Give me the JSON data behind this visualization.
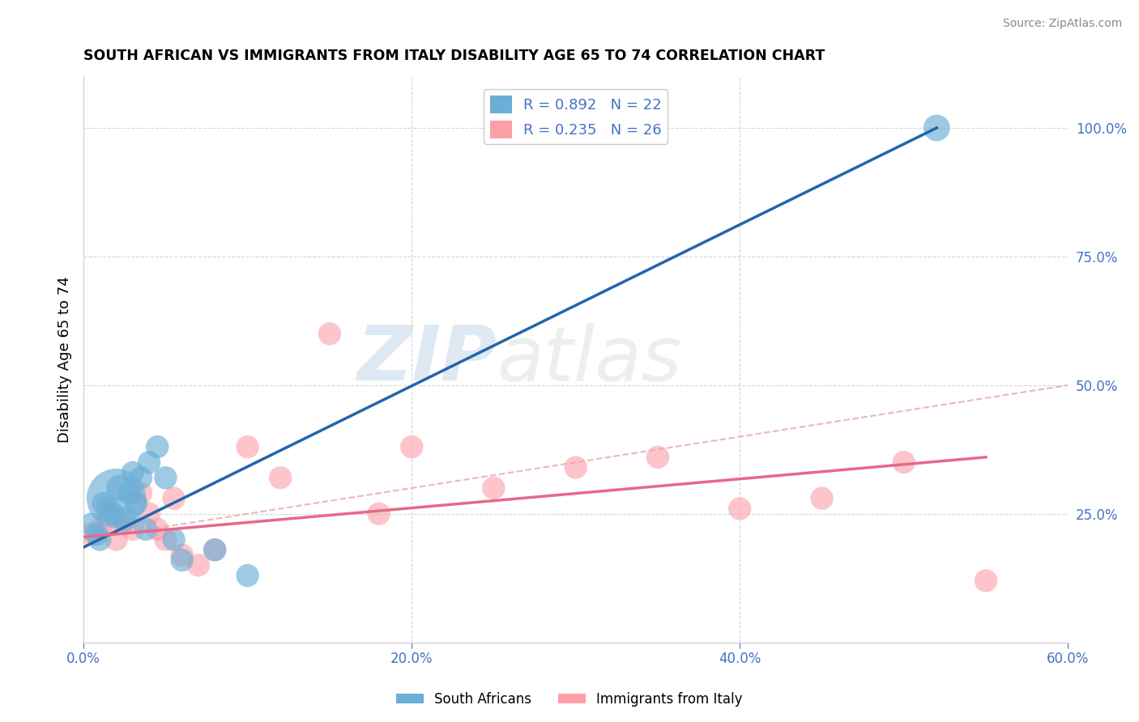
{
  "title": "SOUTH AFRICAN VS IMMIGRANTS FROM ITALY DISABILITY AGE 65 TO 74 CORRELATION CHART",
  "source": "Source: ZipAtlas.com",
  "xlabel": "",
  "ylabel": "Disability Age 65 to 74",
  "xlim": [
    0.0,
    60.0
  ],
  "ylim": [
    0.0,
    110.0
  ],
  "x_ticks": [
    0.0,
    20.0,
    40.0,
    60.0
  ],
  "x_tick_labels": [
    "0.0%",
    "20.0%",
    "40.0%",
    "60.0%"
  ],
  "y_ticks_right": [
    25.0,
    50.0,
    75.0,
    100.0
  ],
  "y_tick_labels_right": [
    "25.0%",
    "50.0%",
    "75.0%",
    "100.0%"
  ],
  "blue_R": 0.892,
  "blue_N": 22,
  "pink_R": 0.235,
  "pink_N": 26,
  "blue_color": "#6baed6",
  "pink_color": "#fc9fa9",
  "blue_line_color": "#2166ac",
  "pink_line_color": "#e8688a",
  "ref_line_color": "#ddaaaa",
  "legend_label_blue": "South Africans",
  "legend_label_pink": "Immigrants from Italy",
  "watermark_zip": "ZIP",
  "watermark_atlas": "atlas",
  "blue_scatter_x": [
    0.5,
    0.8,
    1.0,
    1.2,
    1.5,
    1.8,
    2.0,
    2.2,
    2.5,
    2.8,
    3.0,
    3.2,
    3.5,
    3.8,
    4.0,
    4.5,
    5.0,
    5.5,
    6.0,
    8.0,
    10.0,
    52.0
  ],
  "blue_scatter_y": [
    23.0,
    21.0,
    20.0,
    27.0,
    26.0,
    25.0,
    28.0,
    30.0,
    24.0,
    29.0,
    33.0,
    27.0,
    32.0,
    22.0,
    35.0,
    38.0,
    32.0,
    20.0,
    16.0,
    18.0,
    13.0,
    100.0
  ],
  "blue_scatter_size": [
    60,
    60,
    60,
    60,
    60,
    60,
    400,
    80,
    70,
    60,
    60,
    60,
    60,
    60,
    60,
    60,
    60,
    60,
    60,
    60,
    60,
    80
  ],
  "pink_scatter_x": [
    0.5,
    1.0,
    1.5,
    2.0,
    2.5,
    3.0,
    3.5,
    4.0,
    4.5,
    5.0,
    5.5,
    6.0,
    7.0,
    8.0,
    10.0,
    12.0,
    15.0,
    18.0,
    20.0,
    25.0,
    30.0,
    35.0,
    40.0,
    45.0,
    50.0,
    55.0
  ],
  "pink_scatter_y": [
    21.0,
    22.0,
    24.0,
    20.0,
    23.0,
    22.0,
    29.0,
    25.0,
    22.0,
    20.0,
    28.0,
    17.0,
    15.0,
    18.0,
    38.0,
    32.0,
    60.0,
    25.0,
    38.0,
    30.0,
    34.0,
    36.0,
    26.0,
    28.0,
    35.0,
    12.0
  ],
  "pink_scatter_size": [
    60,
    60,
    60,
    60,
    60,
    60,
    60,
    60,
    60,
    60,
    60,
    60,
    60,
    60,
    60,
    60,
    60,
    60,
    60,
    60,
    60,
    60,
    60,
    60,
    60,
    60
  ],
  "blue_line_x0": 0.0,
  "blue_line_y0": 18.5,
  "blue_line_x1": 52.0,
  "blue_line_y1": 100.0,
  "pink_line_x0": 0.0,
  "pink_line_y0": 20.5,
  "pink_line_x1": 55.0,
  "pink_line_y1": 36.0,
  "ref_line_x0": 0.0,
  "ref_line_y0": 20.0,
  "ref_line_x1": 60.0,
  "ref_line_y1": 50.0
}
